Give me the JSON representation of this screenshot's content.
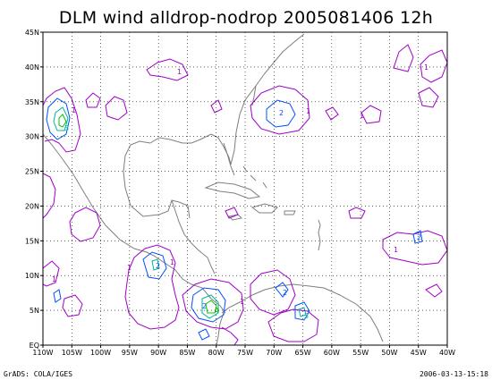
{
  "title": "DLM wind alldrop-nodrop 2005081406 12h",
  "credit": "GrADS: COLA/IGES",
  "timestamp": "2006-03-13-15:18",
  "map": {
    "lon_range": [
      -110,
      -40
    ],
    "lat_range": [
      0,
      45
    ],
    "lat_ticks": [
      "EQ",
      "5N",
      "10N",
      "15N",
      "20N",
      "25N",
      "30N",
      "35N",
      "40N",
      "45N"
    ],
    "lon_ticks": [
      "110W",
      "105W",
      "100W",
      "95W",
      "90W",
      "85W",
      "80W",
      "75W",
      "70W",
      "65W",
      "60W",
      "55W",
      "50W",
      "45W",
      "40W"
    ],
    "colors": {
      "coast": "#7f7f7f",
      "contour_1": "#a000c8",
      "contour_2": "#0050ff",
      "contour_3": "#00b4a0",
      "contour_4": "#00c800",
      "grid": "#000000"
    },
    "contour_labels": [
      "1",
      "2",
      "3",
      "4"
    ]
  }
}
